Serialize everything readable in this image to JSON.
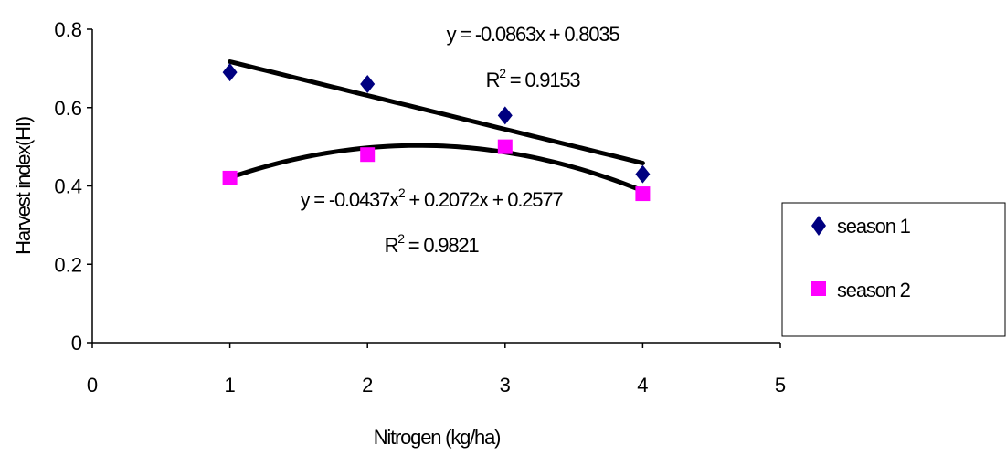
{
  "chart_data": {
    "type": "scatter",
    "xlabel": "Nitrogen (kg/ha)",
    "ylabel": "Harvest index(HI)",
    "xlim": [
      0,
      5
    ],
    "ylim": [
      0,
      0.8
    ],
    "x_ticks": [
      "0",
      "1",
      "2",
      "3",
      "4",
      "5"
    ],
    "y_ticks": [
      "0",
      "0.2",
      "0.4",
      "0.6",
      "0.8"
    ],
    "grid": false,
    "legend_position": "right",
    "series": [
      {
        "name": "season 1",
        "marker": "diamond",
        "color": "#000080",
        "x": [
          1,
          2,
          3,
          4
        ],
        "y": [
          0.69,
          0.66,
          0.58,
          0.43
        ],
        "trendline": {
          "kind": "linear",
          "coefficients": [
            -0.0863,
            0.8035
          ],
          "equation": "y = -0.0863x + 0.8035",
          "r2": "R",
          "r2_sup": "2",
          "r2_value": " = 0.9153"
        }
      },
      {
        "name": "season 2",
        "marker": "square",
        "color": "#ff00ff",
        "x": [
          1,
          2,
          3,
          4
        ],
        "y": [
          0.42,
          0.48,
          0.5,
          0.38
        ],
        "trendline": {
          "kind": "polynomial",
          "coefficients": [
            -0.0437,
            0.2072,
            0.2577
          ],
          "equation_a": "y = -0.0437x",
          "equation_sup": "2",
          "equation_b": " + 0.2072x + 0.2577",
          "r2": "R",
          "r2_sup": "2",
          "r2_value": " = 0.9821"
        }
      }
    ]
  }
}
